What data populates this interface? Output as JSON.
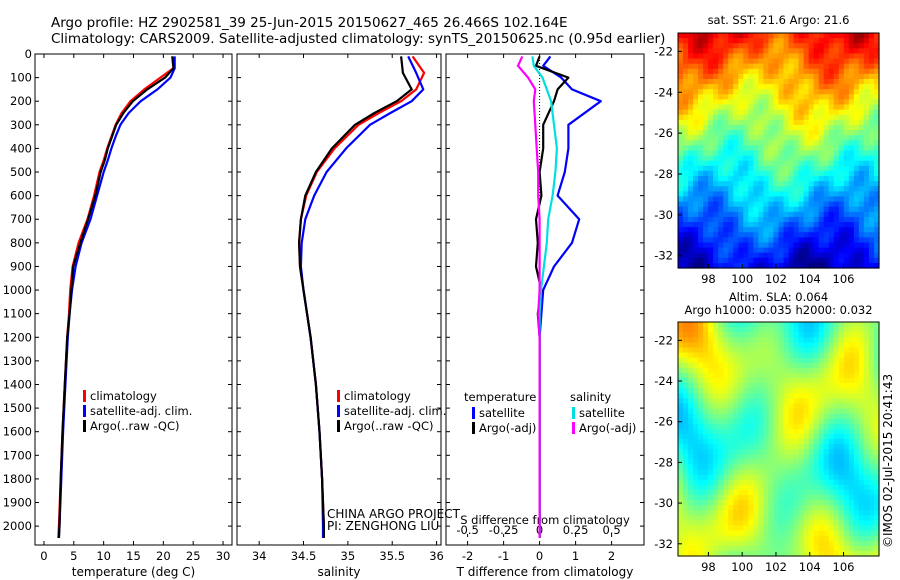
{
  "header": {
    "line1": "Argo profile: HZ 2902581_39 25-Jun-2015 20150627_465 26.466S 102.164E",
    "line2": "Climatology: CARS2009. Satellite-adjusted climatology: synTS_20150625.nc (0.95d earlier)"
  },
  "credit": {
    "project": "CHINA ARGO PROJECT",
    "pi": "PI: ZENGHONG LIU",
    "stamp": "©IMOS 02-Jul-2015 20:41:43"
  },
  "chart_data": [
    {
      "type": "line",
      "id": "temperature-profile",
      "xlabel": "temperature (deg C)",
      "ylabel": "",
      "xlim": [
        -1.5,
        31.5
      ],
      "ylim": [
        2080,
        0
      ],
      "xticks": [
        0,
        5,
        10,
        15,
        20,
        25,
        30
      ],
      "yticks": [
        0,
        100,
        200,
        300,
        400,
        500,
        600,
        700,
        800,
        900,
        1000,
        1100,
        1200,
        1300,
        1400,
        1500,
        1600,
        1700,
        1800,
        1900,
        2000
      ],
      "legend": [
        "climatology",
        "satellite-adj. clim.",
        "Argo(..raw -QC)"
      ],
      "legend_position": "bottom-center",
      "y": [
        10,
        60,
        100,
        150,
        200,
        250,
        300,
        350,
        400,
        450,
        500,
        600,
        700,
        800,
        900,
        1000,
        1100,
        1200,
        1400,
        1600,
        1800,
        2000,
        2050
      ],
      "series": [
        {
          "name": "climatology",
          "color": "#ff0000",
          "values": [
            21.5,
            21.7,
            19.5,
            16.8,
            14.5,
            13.0,
            12.0,
            11.3,
            10.6,
            10.0,
            9.3,
            8.4,
            7.3,
            5.8,
            4.8,
            4.4,
            4.2,
            3.9,
            3.5,
            3.1,
            2.8,
            2.5,
            2.4
          ]
        },
        {
          "name": "satellite-adj. clim.",
          "color": "#0000ff",
          "values": [
            21.9,
            21.9,
            21.2,
            19.0,
            16.2,
            14.2,
            12.8,
            12.0,
            11.3,
            10.7,
            10.0,
            8.9,
            7.8,
            6.3,
            5.3,
            4.7,
            4.3,
            4.0,
            3.6,
            3.2,
            2.9,
            2.6,
            2.5
          ]
        },
        {
          "name": "Argo(..raw -QC)",
          "color": "#000000",
          "values": [
            21.5,
            21.7,
            20.3,
            17.3,
            14.9,
            13.3,
            12.1,
            11.4,
            10.7,
            10.2,
            9.5,
            8.6,
            7.4,
            6.1,
            4.9,
            4.6,
            4.3,
            3.9,
            3.5,
            3.1,
            2.8,
            2.6,
            2.5
          ]
        }
      ]
    },
    {
      "type": "line",
      "id": "salinity-profile",
      "xlabel": "salinity",
      "ylabel": "",
      "xlim": [
        33.75,
        36.05
      ],
      "ylim": [
        2080,
        0
      ],
      "xticks": [
        34,
        34.5,
        35,
        35.5,
        36
      ],
      "legend": [
        "climatology",
        "satellite-adj. clim.",
        "Argo(..raw -QC)"
      ],
      "legend_position": "bottom-center",
      "y": [
        10,
        80,
        150,
        200,
        250,
        300,
        400,
        500,
        600,
        700,
        800,
        900,
        1000,
        1200,
        1400,
        1600,
        1800,
        2000,
        2050
      ],
      "series": [
        {
          "name": "climatology",
          "color": "#ff0000",
          "values": [
            35.73,
            35.86,
            35.77,
            35.6,
            35.35,
            35.12,
            34.85,
            34.65,
            34.53,
            34.47,
            34.45,
            34.46,
            34.5,
            34.58,
            34.64,
            34.68,
            34.71,
            34.73,
            34.73
          ]
        },
        {
          "name": "satellite-adj. clim.",
          "color": "#0000ff",
          "values": [
            35.68,
            35.77,
            35.85,
            35.72,
            35.48,
            35.25,
            34.98,
            34.76,
            34.62,
            34.52,
            34.48,
            34.47,
            34.5,
            34.58,
            34.64,
            34.68,
            34.71,
            34.72,
            34.72
          ]
        },
        {
          "name": "Argo(..raw -QC)",
          "color": "#000000",
          "values": [
            35.6,
            35.62,
            35.72,
            35.55,
            35.3,
            35.08,
            34.82,
            34.64,
            34.52,
            34.47,
            34.45,
            34.46,
            34.5,
            34.58,
            34.64,
            34.68,
            34.71,
            34.73,
            34.73
          ]
        }
      ]
    },
    {
      "type": "line",
      "id": "difference-profile",
      "xlabel": "T difference from climatology",
      "xlabel2": "S difference from climatology",
      "ylabel": "",
      "xlim": [
        -2.6,
        2.9
      ],
      "ylim": [
        2080,
        0
      ],
      "xticks": [
        -2,
        -1,
        0,
        1,
        2
      ],
      "x2ticks": [
        -0.5,
        -0.25,
        0,
        0.25,
        0.5
      ],
      "x2scale": 4,
      "legend_groups": [
        "temperature",
        "salinity"
      ],
      "legend": [
        "satellite",
        "Argo(-adj)",
        "satellite",
        "Argo(-adj)"
      ],
      "legend_position": "bottom-center",
      "y": [
        10,
        50,
        100,
        150,
        200,
        300,
        400,
        500,
        600,
        700,
        800,
        900,
        1000,
        1100,
        1200,
        1400,
        1600,
        1800,
        2000,
        2050
      ],
      "series": [
        {
          "name": "satellite",
          "group": "temperature",
          "color": "#0000ff",
          "values": [
            0.3,
            0.1,
            0.6,
            0.9,
            1.7,
            0.8,
            0.8,
            0.7,
            0.5,
            1.1,
            0.9,
            0.4,
            0.1,
            0.05,
            0.0,
            0.0,
            0.0,
            0.0,
            0.0,
            0.0
          ]
        },
        {
          "name": "Argo(-adj)",
          "group": "temperature",
          "color": "#000000",
          "values": [
            0.0,
            -0.1,
            0.8,
            0.5,
            0.4,
            0.1,
            0.1,
            0.0,
            0.05,
            -0.1,
            -0.05,
            -0.1,
            0.05,
            -0.05,
            0.0,
            0.0,
            0.0,
            0.0,
            0.0,
            0.0
          ]
        },
        {
          "name": "satellite",
          "group": "salinity",
          "color": "#00e0e0",
          "values": [
            -0.05,
            -0.04,
            0.02,
            0.05,
            0.08,
            0.1,
            0.12,
            0.11,
            0.09,
            0.06,
            0.05,
            0.03,
            0.01,
            0.0,
            0.0,
            0.0,
            0.0,
            0.0,
            0.0,
            0.0
          ]
        },
        {
          "name": "Argo(-adj)",
          "group": "salinity",
          "color": "#ff00ff",
          "values": [
            -0.12,
            -0.15,
            -0.08,
            -0.03,
            -0.04,
            -0.03,
            -0.02,
            -0.01,
            -0.01,
            0.0,
            0.0,
            0.0,
            0.0,
            -0.01,
            0.0,
            0.0,
            0.0,
            0.0,
            0.0,
            0.0
          ]
        }
      ]
    },
    {
      "type": "heatmap",
      "id": "sst-map",
      "title": "sat. SST: 21.6 Argo: 21.6",
      "xlim": [
        96.2,
        108.1
      ],
      "ylim": [
        -32.6,
        -21.1
      ],
      "xticks": [
        98,
        100,
        102,
        104,
        106
      ],
      "yticks": [
        -22,
        -24,
        -26,
        -28,
        -30,
        -32
      ],
      "colormap": "jet",
      "field": "sst"
    },
    {
      "type": "heatmap",
      "id": "sla-map",
      "title": "Altim. SLA: 0.064",
      "subtitle": "Argo h1000: 0.035 h2000: 0.032",
      "xlim": [
        96.2,
        108.1
      ],
      "ylim": [
        -32.6,
        -21.1
      ],
      "xticks": [
        98,
        100,
        102,
        104,
        106
      ],
      "yticks": [
        -22,
        -24,
        -26,
        -28,
        -30,
        -32
      ],
      "colormap": "jet",
      "field": "sla"
    }
  ]
}
